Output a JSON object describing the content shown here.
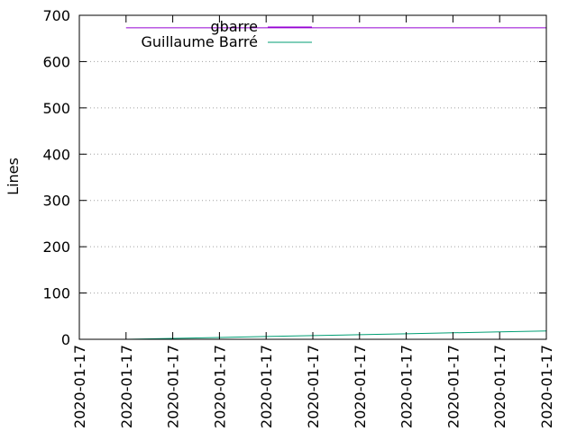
{
  "chart_data": {
    "type": "line",
    "ylabel": "Lines",
    "ylim": [
      0,
      700
    ],
    "yticks": [
      0,
      100,
      200,
      300,
      400,
      500,
      600,
      700
    ],
    "categories": [
      "2020-01-17",
      "2020-01-17",
      "2020-01-17",
      "2020-01-17",
      "2020-01-17",
      "2020-01-17",
      "2020-01-17",
      "2020-01-17",
      "2020-01-17",
      "2020-01-17",
      "2020-01-17"
    ],
    "grid": true,
    "legend_position": "top-left",
    "series": [
      {
        "name": "gbarre",
        "color": "#9400d3",
        "values": [
          null,
          673,
          673,
          673,
          673,
          673,
          673,
          673,
          673,
          673,
          673
        ]
      },
      {
        "name": "Guillaume Barré",
        "color": "#009e73",
        "values": [
          null,
          0,
          2,
          4,
          6,
          8,
          10,
          12,
          14,
          16,
          18
        ]
      }
    ]
  }
}
